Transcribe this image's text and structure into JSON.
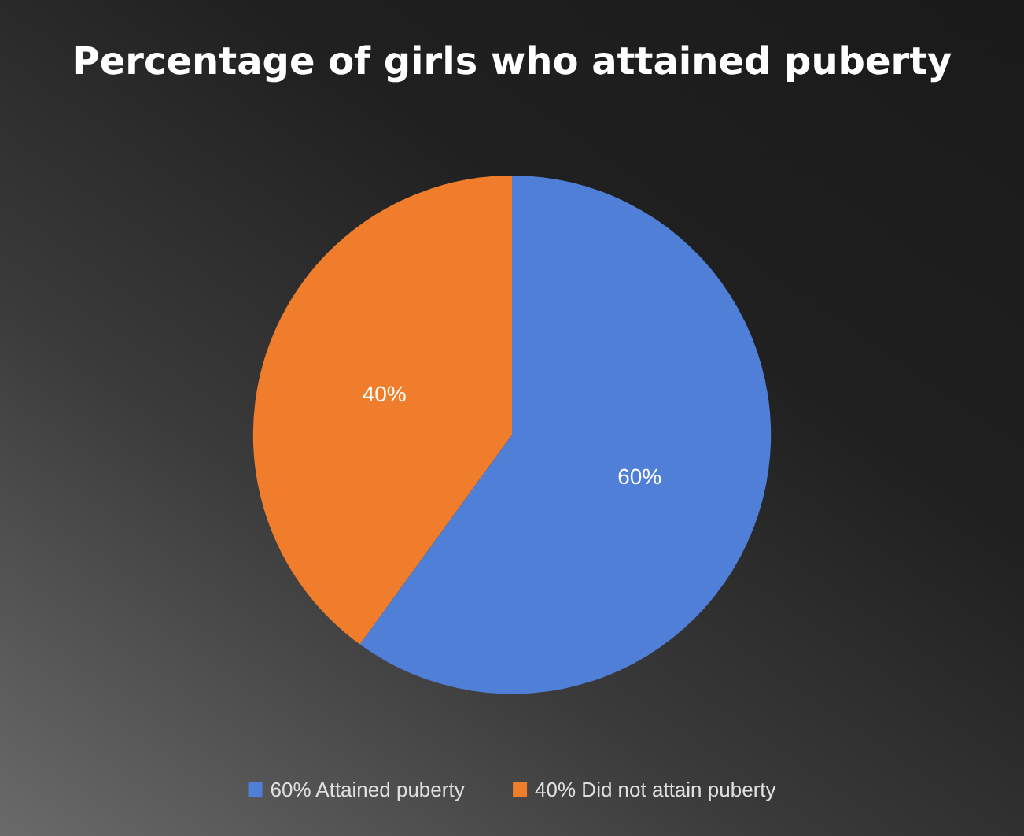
{
  "chart_data": {
    "type": "pie",
    "title": "Percentage of girls who attained puberty",
    "categories": [
      "60% Attained puberty",
      "40% Did not attain puberty"
    ],
    "values": [
      60,
      40
    ],
    "colors": [
      "#4f7fd6",
      "#f07d2c"
    ],
    "value_labels": [
      "60%",
      "40%"
    ],
    "legend": "bottom"
  }
}
